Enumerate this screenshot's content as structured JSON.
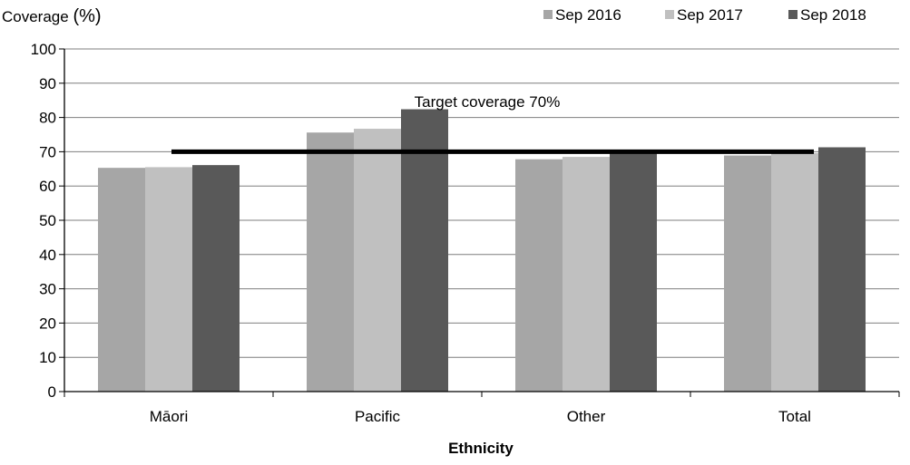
{
  "chart_data": {
    "type": "bar",
    "ylabel_main": "Coverage ",
    "ylabel_unit": "(%)",
    "xlabel": "Ethnicity",
    "categories": [
      "Māori",
      "Pacific",
      "Other",
      "Total"
    ],
    "series": [
      {
        "name": "Sep 2016",
        "color": "#a6a6a6",
        "values": [
          65.3,
          75.6,
          67.8,
          68.9
        ]
      },
      {
        "name": "Sep 2017",
        "color": "#c0c0c0",
        "values": [
          65.5,
          76.7,
          68.5,
          69.6
        ]
      },
      {
        "name": "Sep 2018",
        "color": "#595959",
        "values": [
          66.1,
          82.4,
          70.0,
          71.3
        ]
      }
    ],
    "ylim": [
      0,
      100
    ],
    "yticks": [
      0,
      10,
      20,
      30,
      40,
      50,
      60,
      70,
      80,
      90,
      100
    ],
    "grid": true,
    "legend_position": "top-right",
    "target": {
      "value": 70,
      "label": "Target coverage 70%",
      "color": "#000000"
    }
  }
}
